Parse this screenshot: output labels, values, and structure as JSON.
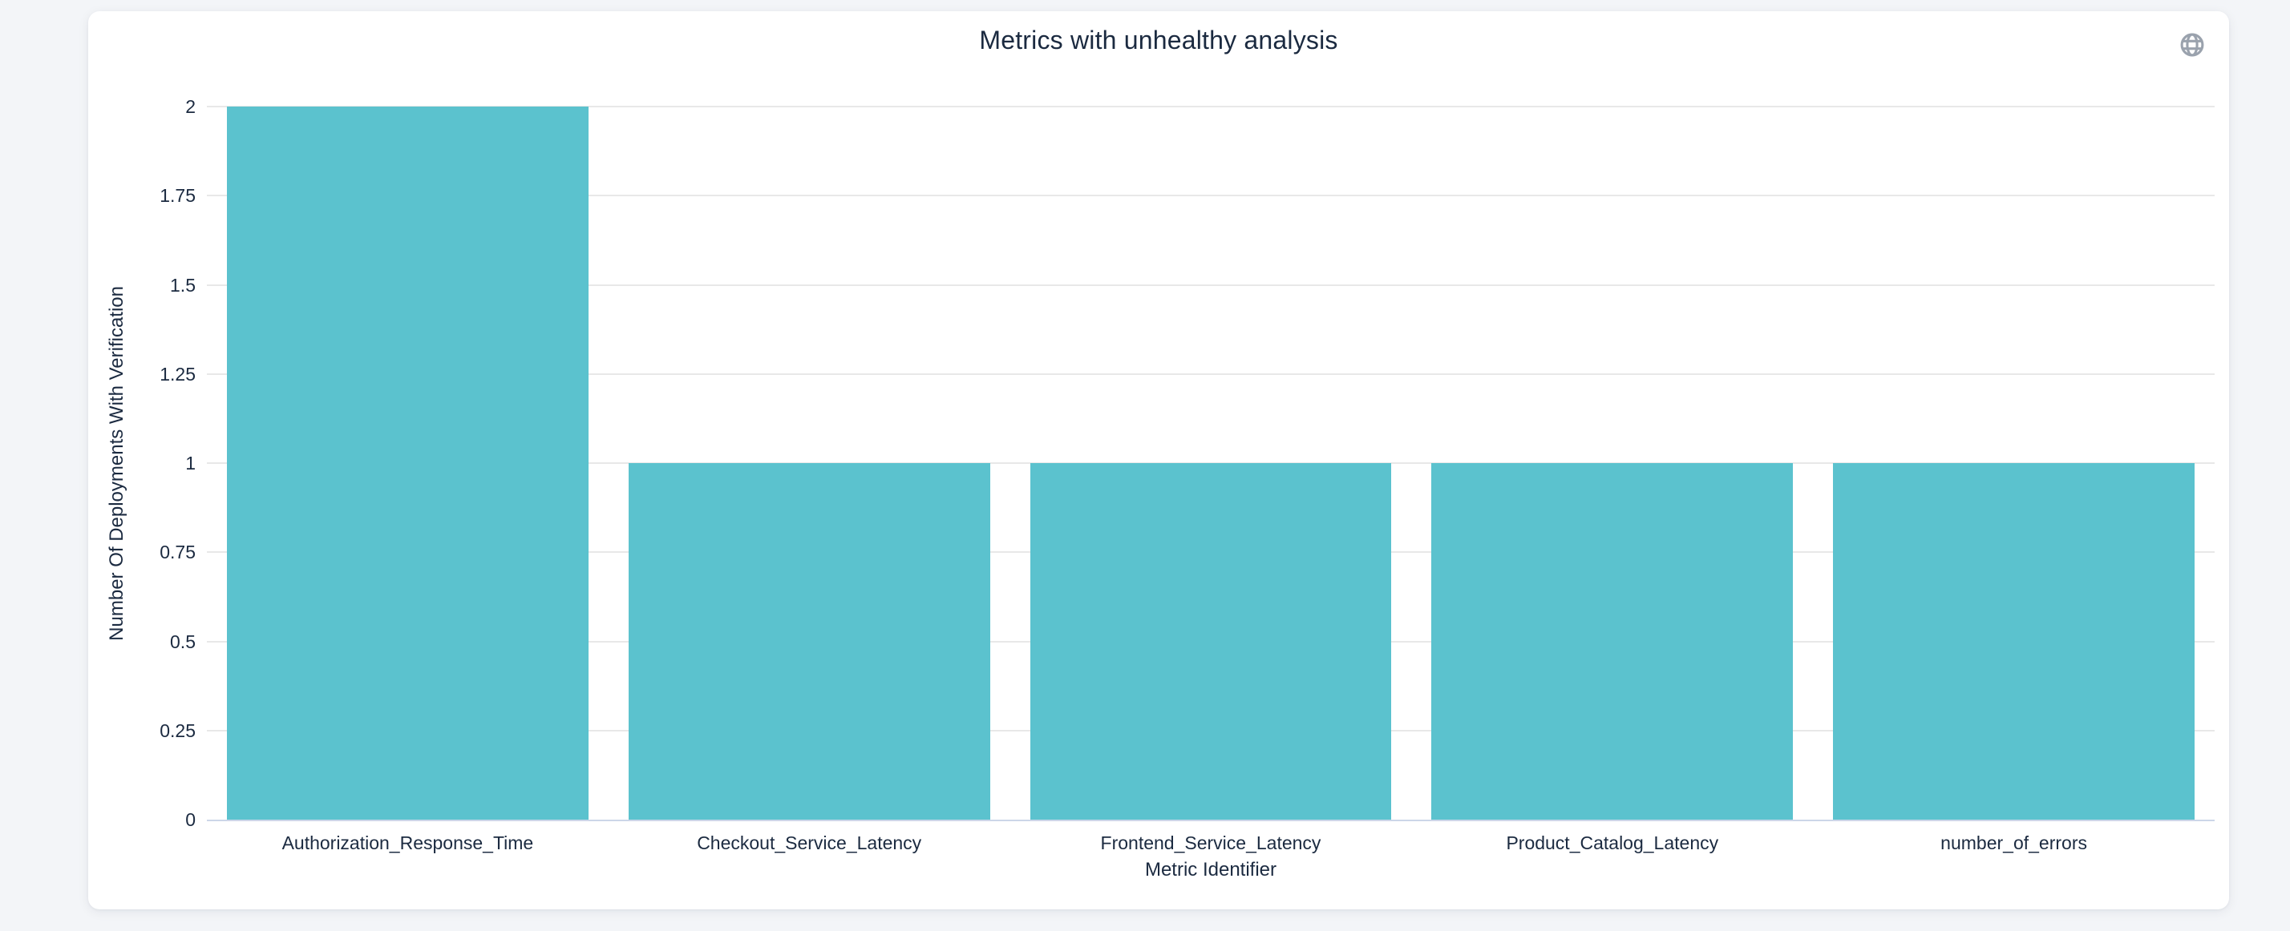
{
  "card": {
    "title": "Metrics with unhealthy analysis",
    "corner_icon": "globe-icon"
  },
  "colors": {
    "page_bg": "#f3f5f8",
    "card_bg": "#ffffff",
    "bar": "#5bc2ce",
    "text": "#1b2a40",
    "gridline": "#e8e8e8",
    "baseline": "#ccd6e8",
    "icon": "#9aa2ad"
  },
  "chart_data": {
    "type": "bar",
    "title": "Metrics with unhealthy analysis",
    "categories": [
      "Authorization_Response_Time",
      "Checkout_Service_Latency",
      "Frontend_Service_Latency",
      "Product_Catalog_Latency",
      "number_of_errors"
    ],
    "values": [
      2,
      1,
      1,
      1,
      1
    ],
    "xlabel": "Metric Identifier",
    "ylabel": "Number Of Deployments With Verification",
    "yticks": [
      0,
      0.25,
      0.5,
      0.75,
      1,
      1.25,
      1.5,
      1.75,
      2
    ],
    "ylim": [
      0,
      2
    ],
    "grid": true,
    "legend": "none",
    "bar_color": "#5bc2ce"
  }
}
